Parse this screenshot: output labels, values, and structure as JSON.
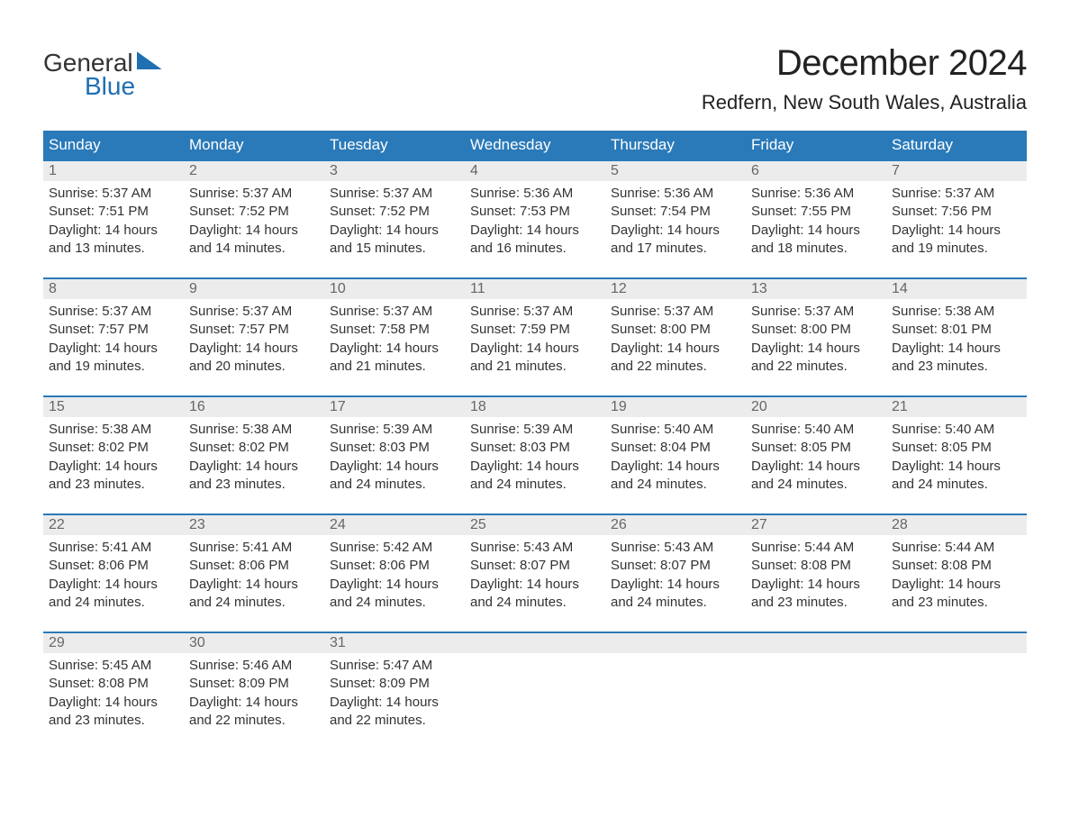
{
  "logo": {
    "line1": "General",
    "line2": "Blue"
  },
  "title": "December 2024",
  "location": "Redfern, New South Wales, Australia",
  "colors": {
    "header_bg": "#2a7ab9",
    "header_text": "#ffffff",
    "daynum_bg": "#ececec",
    "daynum_text": "#666666",
    "body_text": "#333333",
    "rule": "#2a7ab9",
    "brand_blue": "#1f6fb2"
  },
  "typography": {
    "title_fontsize": 40,
    "location_fontsize": 22,
    "dow_fontsize": 17,
    "body_fontsize": 15
  },
  "days_of_week": [
    "Sunday",
    "Monday",
    "Tuesday",
    "Wednesday",
    "Thursday",
    "Friday",
    "Saturday"
  ],
  "labels": {
    "sunrise": "Sunrise:",
    "sunset": "Sunset:",
    "daylight_prefix": "Daylight:",
    "hours_word": "hours",
    "and_word": "and",
    "minutes_word": "minutes."
  },
  "weeks": [
    [
      {
        "n": 1,
        "sunrise": "5:37 AM",
        "sunset": "7:51 PM",
        "dl_h": 14,
        "dl_m": 13
      },
      {
        "n": 2,
        "sunrise": "5:37 AM",
        "sunset": "7:52 PM",
        "dl_h": 14,
        "dl_m": 14
      },
      {
        "n": 3,
        "sunrise": "5:37 AM",
        "sunset": "7:52 PM",
        "dl_h": 14,
        "dl_m": 15
      },
      {
        "n": 4,
        "sunrise": "5:36 AM",
        "sunset": "7:53 PM",
        "dl_h": 14,
        "dl_m": 16
      },
      {
        "n": 5,
        "sunrise": "5:36 AM",
        "sunset": "7:54 PM",
        "dl_h": 14,
        "dl_m": 17
      },
      {
        "n": 6,
        "sunrise": "5:36 AM",
        "sunset": "7:55 PM",
        "dl_h": 14,
        "dl_m": 18
      },
      {
        "n": 7,
        "sunrise": "5:37 AM",
        "sunset": "7:56 PM",
        "dl_h": 14,
        "dl_m": 19
      }
    ],
    [
      {
        "n": 8,
        "sunrise": "5:37 AM",
        "sunset": "7:57 PM",
        "dl_h": 14,
        "dl_m": 19
      },
      {
        "n": 9,
        "sunrise": "5:37 AM",
        "sunset": "7:57 PM",
        "dl_h": 14,
        "dl_m": 20
      },
      {
        "n": 10,
        "sunrise": "5:37 AM",
        "sunset": "7:58 PM",
        "dl_h": 14,
        "dl_m": 21
      },
      {
        "n": 11,
        "sunrise": "5:37 AM",
        "sunset": "7:59 PM",
        "dl_h": 14,
        "dl_m": 21
      },
      {
        "n": 12,
        "sunrise": "5:37 AM",
        "sunset": "8:00 PM",
        "dl_h": 14,
        "dl_m": 22
      },
      {
        "n": 13,
        "sunrise": "5:37 AM",
        "sunset": "8:00 PM",
        "dl_h": 14,
        "dl_m": 22
      },
      {
        "n": 14,
        "sunrise": "5:38 AM",
        "sunset": "8:01 PM",
        "dl_h": 14,
        "dl_m": 23
      }
    ],
    [
      {
        "n": 15,
        "sunrise": "5:38 AM",
        "sunset": "8:02 PM",
        "dl_h": 14,
        "dl_m": 23
      },
      {
        "n": 16,
        "sunrise": "5:38 AM",
        "sunset": "8:02 PM",
        "dl_h": 14,
        "dl_m": 23
      },
      {
        "n": 17,
        "sunrise": "5:39 AM",
        "sunset": "8:03 PM",
        "dl_h": 14,
        "dl_m": 24
      },
      {
        "n": 18,
        "sunrise": "5:39 AM",
        "sunset": "8:03 PM",
        "dl_h": 14,
        "dl_m": 24
      },
      {
        "n": 19,
        "sunrise": "5:40 AM",
        "sunset": "8:04 PM",
        "dl_h": 14,
        "dl_m": 24
      },
      {
        "n": 20,
        "sunrise": "5:40 AM",
        "sunset": "8:05 PM",
        "dl_h": 14,
        "dl_m": 24
      },
      {
        "n": 21,
        "sunrise": "5:40 AM",
        "sunset": "8:05 PM",
        "dl_h": 14,
        "dl_m": 24
      }
    ],
    [
      {
        "n": 22,
        "sunrise": "5:41 AM",
        "sunset": "8:06 PM",
        "dl_h": 14,
        "dl_m": 24
      },
      {
        "n": 23,
        "sunrise": "5:41 AM",
        "sunset": "8:06 PM",
        "dl_h": 14,
        "dl_m": 24
      },
      {
        "n": 24,
        "sunrise": "5:42 AM",
        "sunset": "8:06 PM",
        "dl_h": 14,
        "dl_m": 24
      },
      {
        "n": 25,
        "sunrise": "5:43 AM",
        "sunset": "8:07 PM",
        "dl_h": 14,
        "dl_m": 24
      },
      {
        "n": 26,
        "sunrise": "5:43 AM",
        "sunset": "8:07 PM",
        "dl_h": 14,
        "dl_m": 24
      },
      {
        "n": 27,
        "sunrise": "5:44 AM",
        "sunset": "8:08 PM",
        "dl_h": 14,
        "dl_m": 23
      },
      {
        "n": 28,
        "sunrise": "5:44 AM",
        "sunset": "8:08 PM",
        "dl_h": 14,
        "dl_m": 23
      }
    ],
    [
      {
        "n": 29,
        "sunrise": "5:45 AM",
        "sunset": "8:08 PM",
        "dl_h": 14,
        "dl_m": 23
      },
      {
        "n": 30,
        "sunrise": "5:46 AM",
        "sunset": "8:09 PM",
        "dl_h": 14,
        "dl_m": 22
      },
      {
        "n": 31,
        "sunrise": "5:47 AM",
        "sunset": "8:09 PM",
        "dl_h": 14,
        "dl_m": 22
      },
      null,
      null,
      null,
      null
    ]
  ]
}
